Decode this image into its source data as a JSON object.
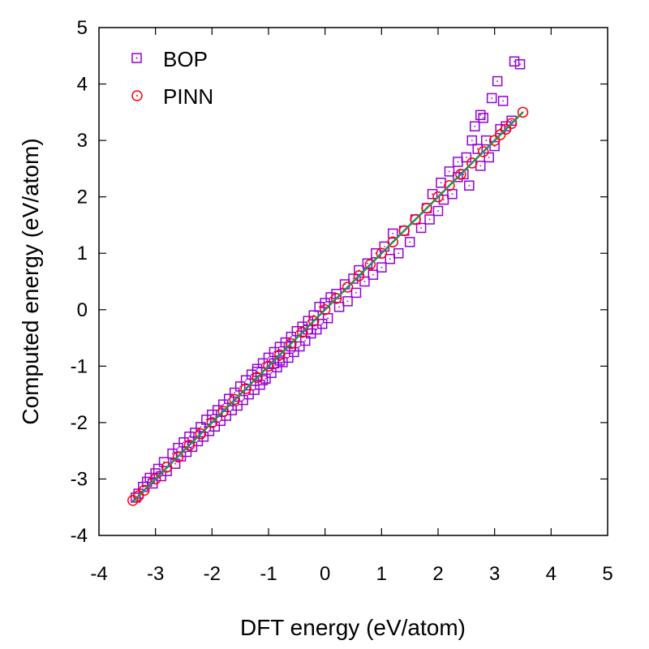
{
  "chart_data": {
    "type": "scatter",
    "title": "",
    "xlabel": "DFT energy (eV/atom)",
    "ylabel": "Computed energy (eV/atom)",
    "xlim": [
      -4,
      5
    ],
    "ylim": [
      -4,
      5
    ],
    "xticks": [
      -4,
      -3,
      -2,
      -1,
      0,
      1,
      2,
      3,
      4,
      5
    ],
    "yticks": [
      -4,
      -3,
      -2,
      -1,
      0,
      1,
      2,
      3,
      4,
      5
    ],
    "legend_position": "top-left",
    "grid": false,
    "colors": {
      "bop": "#9400d3",
      "pinn": "#ff0000",
      "fit_line": "#2e8b57"
    },
    "series": [
      {
        "name": "BOP",
        "marker": "square",
        "points": [
          [
            -3.35,
            -3.33
          ],
          [
            -3.3,
            -3.26
          ],
          [
            -3.22,
            -3.14
          ],
          [
            -3.15,
            -3.05
          ],
          [
            -3.1,
            -2.98
          ],
          [
            -3.05,
            -3.08
          ],
          [
            -3.0,
            -2.9
          ],
          [
            -2.95,
            -2.82
          ],
          [
            -2.9,
            -2.95
          ],
          [
            -2.85,
            -2.7
          ],
          [
            -2.8,
            -2.86
          ],
          [
            -2.7,
            -2.55
          ],
          [
            -2.65,
            -2.73
          ],
          [
            -2.6,
            -2.45
          ],
          [
            -2.55,
            -2.6
          ],
          [
            -2.5,
            -2.35
          ],
          [
            -2.45,
            -2.52
          ],
          [
            -2.4,
            -2.25
          ],
          [
            -2.35,
            -2.43
          ],
          [
            -2.3,
            -2.18
          ],
          [
            -2.25,
            -2.33
          ],
          [
            -2.2,
            -2.08
          ],
          [
            -2.15,
            -2.25
          ],
          [
            -2.1,
            -1.95
          ],
          [
            -2.05,
            -2.15
          ],
          [
            -2.0,
            -1.86
          ],
          [
            -1.95,
            -2.07
          ],
          [
            -1.9,
            -1.78
          ],
          [
            -1.85,
            -1.97
          ],
          [
            -1.8,
            -1.68
          ],
          [
            -1.75,
            -1.88
          ],
          [
            -1.7,
            -1.58
          ],
          [
            -1.65,
            -1.78
          ],
          [
            -1.6,
            -1.47
          ],
          [
            -1.55,
            -1.7
          ],
          [
            -1.5,
            -1.36
          ],
          [
            -1.45,
            -1.6
          ],
          [
            -1.4,
            -1.25
          ],
          [
            -1.35,
            -1.5
          ],
          [
            -1.3,
            -1.15
          ],
          [
            -1.25,
            -1.42
          ],
          [
            -1.2,
            -1.05
          ],
          [
            -1.15,
            -1.33
          ],
          [
            -1.1,
            -0.95
          ],
          [
            -1.05,
            -1.22
          ],
          [
            -1.0,
            -0.85
          ],
          [
            -0.95,
            -1.12
          ],
          [
            -0.9,
            -0.75
          ],
          [
            -0.85,
            -1.02
          ],
          [
            -0.8,
            -0.66
          ],
          [
            -0.75,
            -0.93
          ],
          [
            -0.7,
            -0.58
          ],
          [
            -0.65,
            -0.85
          ],
          [
            -0.6,
            -0.48
          ],
          [
            -0.55,
            -0.75
          ],
          [
            -0.5,
            -0.38
          ],
          [
            -0.45,
            -0.65
          ],
          [
            -0.4,
            -0.3
          ],
          [
            -0.35,
            -0.55
          ],
          [
            -0.3,
            -0.2
          ],
          [
            -0.25,
            -0.42
          ],
          [
            -0.2,
            -0.1
          ],
          [
            -0.15,
            -0.35
          ],
          [
            -0.1,
            0.05
          ],
          [
            -0.05,
            -0.25
          ],
          [
            0.0,
            0.12
          ],
          [
            0.05,
            -0.15
          ],
          [
            0.1,
            0.22
          ],
          [
            0.2,
            0.28
          ],
          [
            0.25,
            0.05
          ],
          [
            0.35,
            0.45
          ],
          [
            0.4,
            0.15
          ],
          [
            0.5,
            0.55
          ],
          [
            0.55,
            0.3
          ],
          [
            0.6,
            0.7
          ],
          [
            0.7,
            0.5
          ],
          [
            0.75,
            0.82
          ],
          [
            0.85,
            0.62
          ],
          [
            0.9,
            1.0
          ],
          [
            1.0,
            0.75
          ],
          [
            1.05,
            1.12
          ],
          [
            1.15,
            0.9
          ],
          [
            1.2,
            1.35
          ],
          [
            1.3,
            1.0
          ],
          [
            1.4,
            1.4
          ],
          [
            1.5,
            1.2
          ],
          [
            1.6,
            1.6
          ],
          [
            1.7,
            1.45
          ],
          [
            1.8,
            1.8
          ],
          [
            1.85,
            1.6
          ],
          [
            1.9,
            2.05
          ],
          [
            2.0,
            1.75
          ],
          [
            2.05,
            2.25
          ],
          [
            2.1,
            1.95
          ],
          [
            2.2,
            2.45
          ],
          [
            2.25,
            2.05
          ],
          [
            2.35,
            2.35
          ],
          [
            2.45,
            2.4
          ],
          [
            2.5,
            2.7
          ],
          [
            2.55,
            2.2
          ],
          [
            2.7,
            2.85
          ],
          [
            2.75,
            2.55
          ],
          [
            2.85,
            3.0
          ],
          [
            2.9,
            2.7
          ],
          [
            3.0,
            2.9
          ],
          [
            3.1,
            3.2
          ],
          [
            3.2,
            3.25
          ],
          [
            3.3,
            3.35
          ],
          [
            2.35,
            2.62
          ],
          [
            2.6,
            3.0
          ],
          [
            2.65,
            3.25
          ],
          [
            2.75,
            3.45
          ],
          [
            2.8,
            3.4
          ],
          [
            2.95,
            3.75
          ],
          [
            3.05,
            4.05
          ],
          [
            3.15,
            3.7
          ],
          [
            3.35,
            4.4
          ],
          [
            3.45,
            4.35
          ],
          [
            -1.2,
            -1.1
          ],
          [
            -1.1,
            -1.25
          ],
          [
            -0.9,
            -0.95
          ],
          [
            -0.8,
            -0.9
          ],
          [
            -0.6,
            -0.65
          ],
          [
            -0.3,
            -0.35
          ]
        ]
      },
      {
        "name": "PINN",
        "marker": "circle",
        "points": [
          [
            -3.4,
            -3.38
          ],
          [
            -3.3,
            -3.3
          ],
          [
            -3.2,
            -3.2
          ],
          [
            -3.0,
            -3.0
          ],
          [
            -2.8,
            -2.79
          ],
          [
            -2.6,
            -2.61
          ],
          [
            -2.4,
            -2.4
          ],
          [
            -2.2,
            -2.2
          ],
          [
            -2.0,
            -2.0
          ],
          [
            -1.8,
            -1.8
          ],
          [
            -1.6,
            -1.59
          ],
          [
            -1.4,
            -1.4
          ],
          [
            -1.2,
            -1.2
          ],
          [
            -1.0,
            -1.0
          ],
          [
            -0.8,
            -0.8
          ],
          [
            -0.6,
            -0.6
          ],
          [
            -0.4,
            -0.4
          ],
          [
            -0.2,
            -0.2
          ],
          [
            0.0,
            0.0
          ],
          [
            0.2,
            0.2
          ],
          [
            0.4,
            0.4
          ],
          [
            0.6,
            0.6
          ],
          [
            0.8,
            0.8
          ],
          [
            1.0,
            1.0
          ],
          [
            1.2,
            1.2
          ],
          [
            1.4,
            1.4
          ],
          [
            1.6,
            1.6
          ],
          [
            1.8,
            1.8
          ],
          [
            2.0,
            2.0
          ],
          [
            2.2,
            2.2
          ],
          [
            2.4,
            2.4
          ],
          [
            2.6,
            2.6
          ],
          [
            2.8,
            2.8
          ],
          [
            3.0,
            3.0
          ],
          [
            3.1,
            3.1
          ],
          [
            3.2,
            3.2
          ],
          [
            3.3,
            3.3
          ],
          [
            3.5,
            3.5
          ]
        ]
      }
    ],
    "fit_line": {
      "x": [
        -3.4,
        3.5
      ],
      "y": [
        -3.4,
        3.5
      ]
    }
  }
}
